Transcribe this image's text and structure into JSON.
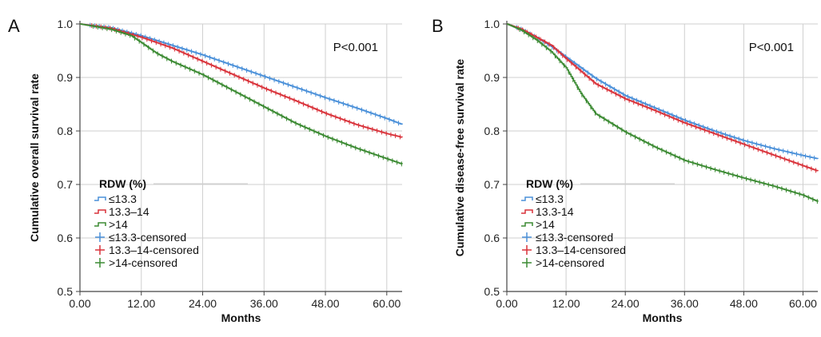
{
  "chart_data": [
    {
      "type": "line",
      "panel_label": "A",
      "ylabel": "Cumulative overall survival rate",
      "xlabel": "Months",
      "xlim": [
        0,
        63
      ],
      "ylim": [
        0.5,
        1.0
      ],
      "x_ticks": [
        "0.00",
        "12.00",
        "24.00",
        "36.00",
        "48.00",
        "60.00"
      ],
      "y_ticks": [
        "0.5",
        "0.6",
        "0.7",
        "0.8",
        "0.9",
        "1.0"
      ],
      "grid": true,
      "annotation": "P<0.001",
      "legend_title": "RDW (%)",
      "legend": [
        "≤13.3",
        "13.3–14",
        ">14",
        "≤13.3-censored",
        "13.3–14-censored",
        ">14-censored"
      ],
      "series": [
        {
          "name": "≤13.3",
          "color": "#4a90d9",
          "x": [
            0,
            6,
            12,
            18,
            24,
            30,
            36,
            42,
            48,
            54,
            60,
            63
          ],
          "y": [
            1.0,
            0.993,
            0.978,
            0.96,
            0.942,
            0.922,
            0.902,
            0.882,
            0.862,
            0.843,
            0.823,
            0.812
          ]
        },
        {
          "name": "13.3–14",
          "color": "#d9323a",
          "x": [
            0,
            6,
            12,
            18,
            24,
            30,
            36,
            42,
            48,
            54,
            60,
            63
          ],
          "y": [
            1.0,
            0.992,
            0.975,
            0.955,
            0.93,
            0.905,
            0.88,
            0.857,
            0.833,
            0.812,
            0.795,
            0.788
          ]
        },
        {
          "name": ">14",
          "color": "#3b8a32",
          "x": [
            0,
            6,
            10,
            12,
            15,
            18,
            24,
            30,
            36,
            42,
            48,
            54,
            60,
            63
          ],
          "y": [
            1.0,
            0.99,
            0.978,
            0.965,
            0.945,
            0.93,
            0.905,
            0.875,
            0.845,
            0.815,
            0.79,
            0.768,
            0.748,
            0.738
          ]
        }
      ]
    },
    {
      "type": "line",
      "panel_label": "B",
      "ylabel": "Cumulative disease-free survival rate",
      "xlabel": "Months",
      "xlim": [
        0,
        63
      ],
      "ylim": [
        0.5,
        1.0
      ],
      "x_ticks": [
        "0.00",
        "12.00",
        "24.00",
        "36.00",
        "48.00",
        "60.00"
      ],
      "y_ticks": [
        "0.5",
        "0.6",
        "0.7",
        "0.8",
        "0.9",
        "1.0"
      ],
      "grid": true,
      "annotation": "P<0.001",
      "legend_title": "RDW (%)",
      "legend": [
        "≤13.3",
        "13.3-14",
        ">14",
        "≤13.3-censored",
        "13.3–14-censored",
        ">14-censored"
      ],
      "series": [
        {
          "name": "≤13.3",
          "color": "#4a90d9",
          "x": [
            0,
            3,
            6,
            9,
            12,
            18,
            24,
            30,
            36,
            42,
            48,
            54,
            60,
            63
          ],
          "y": [
            1.0,
            0.99,
            0.975,
            0.958,
            0.938,
            0.898,
            0.866,
            0.843,
            0.82,
            0.8,
            0.782,
            0.767,
            0.754,
            0.748
          ]
        },
        {
          "name": "13.3-14",
          "color": "#d9323a",
          "x": [
            0,
            3,
            6,
            9,
            12,
            18,
            24,
            30,
            36,
            42,
            48,
            54,
            60,
            63
          ],
          "y": [
            1.0,
            0.99,
            0.975,
            0.96,
            0.935,
            0.888,
            0.86,
            0.838,
            0.815,
            0.795,
            0.775,
            0.755,
            0.735,
            0.725
          ]
        },
        {
          "name": ">14",
          "color": "#3b8a32",
          "x": [
            0,
            3,
            6,
            9,
            12,
            15,
            18,
            21,
            24,
            30,
            36,
            42,
            48,
            54,
            60,
            63
          ],
          "y": [
            1.0,
            0.988,
            0.97,
            0.948,
            0.918,
            0.87,
            0.832,
            0.815,
            0.798,
            0.77,
            0.745,
            0.728,
            0.712,
            0.697,
            0.68,
            0.668
          ]
        }
      ]
    }
  ]
}
